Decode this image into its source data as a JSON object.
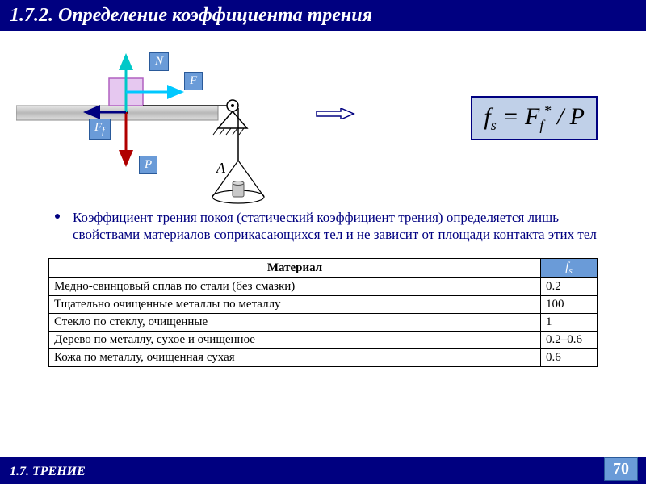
{
  "header": {
    "title": "1.7.2. Определение коэффициента трения"
  },
  "diagram": {
    "labels": {
      "N": "N",
      "F": "F",
      "Ff": "F",
      "Ff_sub": "f",
      "P": "P",
      "A": "A"
    },
    "formula": {
      "lhs": "f",
      "lhs_sub": "s",
      "eq": " = ",
      "rhs1": "F",
      "rhs1_sub": "f",
      "rhs1_sup": "*",
      "div": " / ",
      "rhs2": "P"
    },
    "colors": {
      "header_bg": "#000080",
      "label_bg": "#6a9bd8",
      "surface_fill": "#c8c8c8",
      "surface_stroke": "#888888",
      "block_fill": "#e6c8f0",
      "block_stroke": "#b060c0",
      "N_arrow": "#00c8c8",
      "F_arrow": "#00c8ff",
      "P_arrow": "#b00000",
      "Ff_arrow": "#000080"
    }
  },
  "body": {
    "text": "Коэффициент трения покоя  (статический коэффициент трения) определяется лишь свойствами материалов соприкасающихся тел и не зависит от площади контакта этих тел"
  },
  "table": {
    "header_material": "Материал",
    "header_fs": "f",
    "header_fs_sub": "s",
    "rows": [
      {
        "material": "Медно-свинцовый сплав по стали (без смазки)",
        "fs": "0.2"
      },
      {
        "material": "Тщательно очищенные металлы по металлу",
        "fs": "100"
      },
      {
        "material": "Стекло по стеклу, очищенные",
        "fs": "1"
      },
      {
        "material": "Дерево по металлу, сухое и очищенное",
        "fs": "0.2–0.6"
      },
      {
        "material": "Кожа по металлу, очищенная сухая",
        "fs": "0.6"
      }
    ]
  },
  "footer": {
    "section": "1.7. ТРЕНИЕ",
    "page": "70"
  }
}
